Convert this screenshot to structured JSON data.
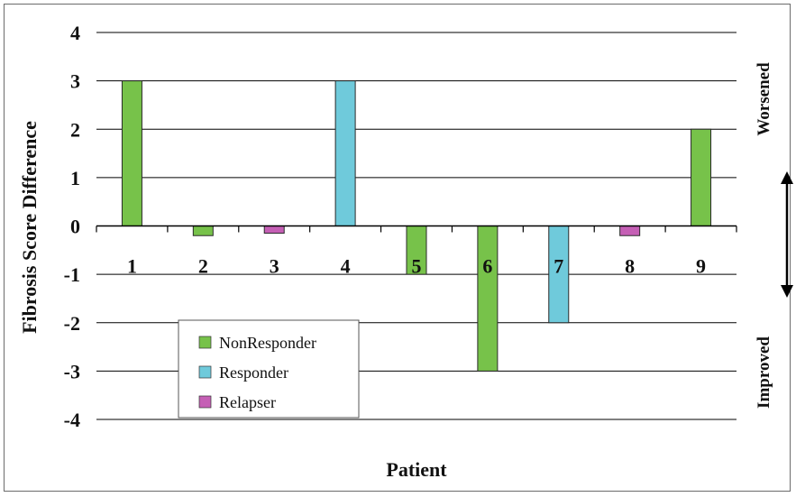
{
  "chart_data": {
    "type": "bar",
    "xlabel": "Patient",
    "ylabel": "Fibrosis Score Difference",
    "ylim": [
      -4,
      4
    ],
    "yticks": [
      "4",
      "3",
      "2",
      "1",
      "0",
      "-1",
      "-2",
      "-3",
      "-4"
    ],
    "categories": [
      "1",
      "2",
      "3",
      "4",
      "5",
      "6",
      "7",
      "8",
      "9"
    ],
    "series": [
      {
        "name": "NonResponder",
        "color": "#77c24a"
      },
      {
        "name": "Responder",
        "color": "#6fcadb"
      },
      {
        "name": "Relapser",
        "color": "#c55fb5"
      }
    ],
    "bars": [
      {
        "patient": "1",
        "series": "NonResponder",
        "value": 3
      },
      {
        "patient": "2",
        "series": "NonResponder",
        "value": -0.2
      },
      {
        "patient": "3",
        "series": "Relapser",
        "value": -0.15
      },
      {
        "patient": "4",
        "series": "Responder",
        "value": 3
      },
      {
        "patient": "5",
        "series": "NonResponder",
        "value": -1
      },
      {
        "patient": "6",
        "series": "NonResponder",
        "value": -3
      },
      {
        "patient": "7",
        "series": "Responder",
        "value": -2
      },
      {
        "patient": "8",
        "series": "Relapser",
        "value": -0.2
      },
      {
        "patient": "9",
        "series": "NonResponder",
        "value": 2
      }
    ],
    "grid": true,
    "legend_position": "bottom-left",
    "annotations": {
      "top": "Worsened",
      "bottom": "Improved"
    },
    "double_arrow": true
  }
}
